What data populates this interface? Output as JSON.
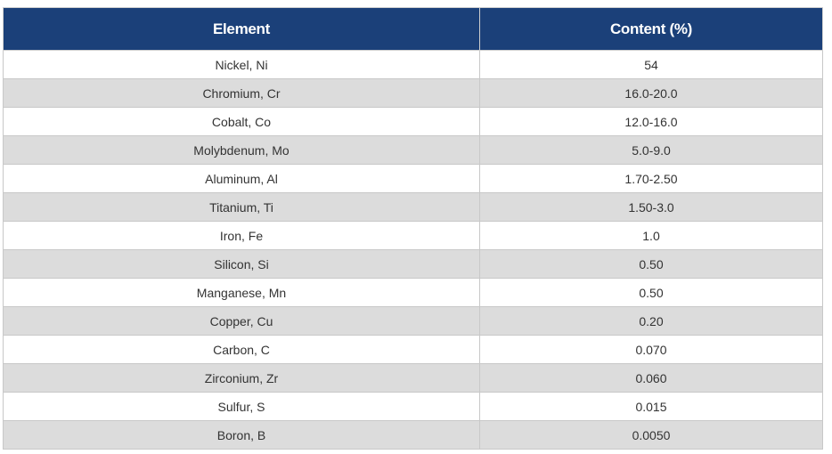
{
  "table": {
    "headers": {
      "element": "Element",
      "content": "Content (%)"
    },
    "colors": {
      "header_bg": "#1b4079",
      "header_text": "#ffffff",
      "row_even": "#ffffff",
      "row_odd": "#dcdcdc"
    },
    "rows": [
      {
        "element": "Nickel, Ni",
        "content": "54"
      },
      {
        "element": "Chromium, Cr",
        "content": "16.0-20.0"
      },
      {
        "element": "Cobalt, Co",
        "content": "12.0-16.0"
      },
      {
        "element": "Molybdenum, Mo",
        "content": "5.0-9.0"
      },
      {
        "element": "Aluminum, Al",
        "content": "1.70-2.50"
      },
      {
        "element": "Titanium, Ti",
        "content": "1.50-3.0"
      },
      {
        "element": "Iron, Fe",
        "content": "1.0"
      },
      {
        "element": "Silicon, Si",
        "content": "0.50"
      },
      {
        "element": "Manganese, Mn",
        "content": "0.50"
      },
      {
        "element": "Copper, Cu",
        "content": "0.20"
      },
      {
        "element": "Carbon, C",
        "content": "0.070"
      },
      {
        "element": "Zirconium, Zr",
        "content": "0.060"
      },
      {
        "element": "Sulfur, S",
        "content": "0.015"
      },
      {
        "element": "Boron, B",
        "content": "0.0050"
      }
    ]
  }
}
